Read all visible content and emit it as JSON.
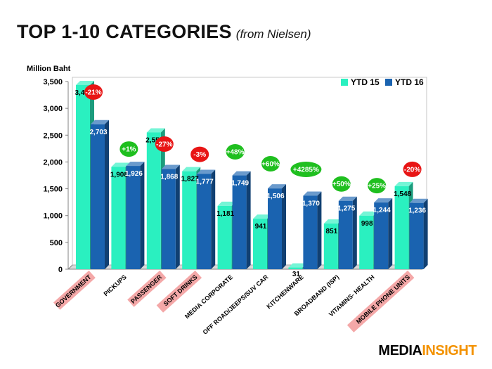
{
  "header": {
    "title": "TOP 1-10 CATEGORIES",
    "subtitle": "(from Nielsen)"
  },
  "brand": {
    "part1": "MEDIA",
    "part2": "INSIGHT"
  },
  "colors": {
    "ytd15": "#2af0c0",
    "ytd16": "#1a63b0",
    "increase_badge": "#1fbf1f",
    "decrease_badge": "#e81515",
    "highlight": "#f4a8a8",
    "brand_orange": "#f39200"
  },
  "chart_data": {
    "type": "bar",
    "unit_label": "Million Baht",
    "ylim": [
      0,
      3500
    ],
    "yticks": [
      0,
      500,
      1000,
      1500,
      2000,
      2500,
      3000,
      3500
    ],
    "ytick_labels": [
      "0",
      "500",
      "1,000",
      "1,500",
      "2,000",
      "2,500",
      "3,000",
      "3,500"
    ],
    "grid": false,
    "legend_position": "top-right",
    "categories": [
      "GOVERNMENT",
      "PICKUPS",
      "PASSENGER",
      "SOFT DRINKS",
      "MEDIA CORPORATE",
      "OFF ROAD/JEEPS/SUV CAR",
      "KITCHENWARE",
      "BROADBAND (ISP)",
      "VITAMINS- HEALTH",
      "MOBILE PHONE UNITS"
    ],
    "highlighted_categories": [
      "GOVERNMENT",
      "PASSENGER",
      "SOFT DRINKS",
      "MOBILE PHONE UNITS"
    ],
    "series": [
      {
        "name": "YTD 15",
        "values": [
          3435,
          1908,
          2550,
          1827,
          1181,
          941,
          31,
          851,
          998,
          1548
        ],
        "labels": [
          "3,435",
          "1,908",
          "2,550",
          "1,827",
          "1,181",
          "941",
          "31",
          "851",
          "998",
          "1,548"
        ]
      },
      {
        "name": "YTD 16",
        "values": [
          2703,
          1926,
          1868,
          1777,
          1749,
          1506,
          1370,
          1275,
          1244,
          1236
        ],
        "labels": [
          "2,703",
          "1,926",
          "1,868",
          "1,777",
          "1,749",
          "1,506",
          "1,370",
          "1,275",
          "1,244",
          "1,236"
        ]
      }
    ],
    "annotations": [
      {
        "category": "GOVERNMENT",
        "text": "-21%",
        "kind": "decrease"
      },
      {
        "category": "PICKUPS",
        "text": "+1%",
        "kind": "increase"
      },
      {
        "category": "PASSENGER",
        "text": "-27%",
        "kind": "decrease"
      },
      {
        "category": "SOFT DRINKS",
        "text": "-3%",
        "kind": "decrease"
      },
      {
        "category": "MEDIA CORPORATE",
        "text": "+48%",
        "kind": "increase"
      },
      {
        "category": "OFF ROAD/JEEPS/SUV CAR",
        "text": "+60%",
        "kind": "increase"
      },
      {
        "category": "KITCHENWARE",
        "text": "+4285%",
        "kind": "increase"
      },
      {
        "category": "BROADBAND (ISP)",
        "text": "+50%",
        "kind": "increase"
      },
      {
        "category": "VITAMINS- HEALTH",
        "text": "+25%",
        "kind": "increase"
      },
      {
        "category": "MOBILE PHONE UNITS",
        "text": "-20%",
        "kind": "decrease"
      }
    ]
  }
}
